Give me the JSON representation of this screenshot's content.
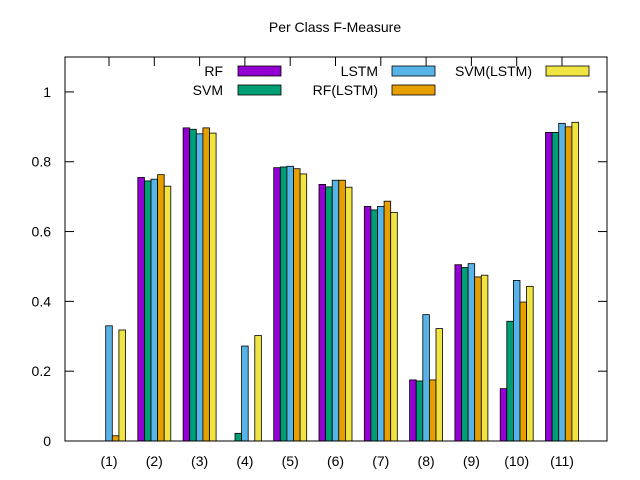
{
  "chart_data": {
    "type": "bar",
    "title": "Per Class F-Measure",
    "xlabel": "",
    "ylabel": "",
    "ylim": [
      0,
      1.1
    ],
    "yticks": [
      0,
      0.2,
      0.4,
      0.6,
      0.8,
      1
    ],
    "ytick_labels": [
      "0",
      "0.2",
      "0.4",
      "0.6",
      "0.8",
      "1"
    ],
    "grid": false,
    "legend_position": "top-right",
    "categories": [
      "(1)",
      "(2)",
      "(3)",
      "(4)",
      "(5)",
      "(6)",
      "(7)",
      "(8)",
      "(9)",
      "(10)",
      "(11)"
    ],
    "series": [
      {
        "name": "RF",
        "color": "#9400d3",
        "values": [
          0,
          0.755,
          0.897,
          0,
          0.783,
          0.735,
          0.672,
          0.175,
          0.505,
          0.15,
          0.884
        ]
      },
      {
        "name": "SVM",
        "color": "#009e73",
        "values": [
          0,
          0.745,
          0.893,
          0.022,
          0.785,
          0.728,
          0.662,
          0.172,
          0.497,
          0.343,
          0.884
        ]
      },
      {
        "name": "LSTM",
        "color": "#56b4e9",
        "values": [
          0.33,
          0.75,
          0.88,
          0.272,
          0.787,
          0.747,
          0.672,
          0.362,
          0.508,
          0.46,
          0.91
        ]
      },
      {
        "name": "RF(LSTM)",
        "color": "#e69f00",
        "values": [
          0.015,
          0.763,
          0.897,
          0,
          0.78,
          0.747,
          0.687,
          0.175,
          0.47,
          0.398,
          0.9
        ]
      },
      {
        "name": "SVM(LSTM)",
        "color": "#f0e442",
        "values": [
          0.318,
          0.73,
          0.882,
          0.302,
          0.765,
          0.727,
          0.655,
          0.322,
          0.475,
          0.443,
          0.913
        ]
      }
    ]
  }
}
